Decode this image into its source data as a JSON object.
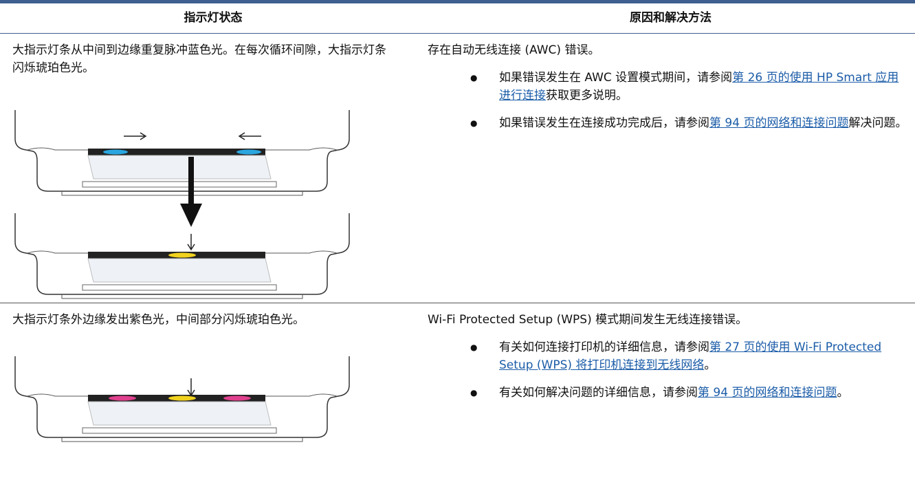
{
  "table": {
    "headers": [
      "指示灯状态",
      "原因和解决方法"
    ],
    "rows": [
      {
        "state": "大指示灯条从中间到边缘重复脉冲蓝色光。在每次循环间隙，大指示灯条闪烁琥珀色光。",
        "cause": "存在自动无线连接 (AWC) 错误。",
        "bullets": [
          [
            {
              "text": "如果错误发生在 AWC 设置模式期间，请参阅"
            },
            {
              "link": "第 26 页的使用 HP Smart 应用进行连接"
            },
            {
              "text": "获取更多说明。"
            }
          ],
          [
            {
              "text": "如果错误发生在连接成功完成后，请参阅"
            },
            {
              "link": "第 94 页的网络和连接问题"
            },
            {
              "text": "解决问题。"
            }
          ]
        ]
      },
      {
        "state": "大指示灯条外边缘发出紫色光，中间部分闪烁琥珀色光。",
        "cause": "Wi-Fi Protected Setup (WPS) 模式期间发生无线连接错误。",
        "bullets": [
          [
            {
              "text": "有关如何连接打印机的详细信息，请参阅"
            },
            {
              "link": "第 27 页的使用 Wi-Fi Protected Setup (WPS) 将打印机连接到无线网络"
            },
            {
              "text": "。"
            }
          ],
          [
            {
              "text": "有关如何解决问题的详细信息，请参阅"
            },
            {
              "link": "第 94 页的网络和连接问题"
            },
            {
              "text": "。"
            }
          ]
        ]
      }
    ]
  }
}
